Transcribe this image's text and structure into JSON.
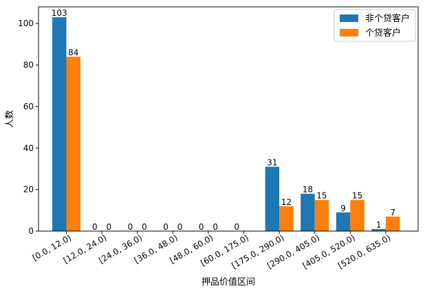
{
  "chart_data": {
    "type": "bar",
    "xlabel": "押品价值区间",
    "ylabel": "人数",
    "ylim": [
      0,
      108
    ],
    "yticks": [
      0,
      20,
      40,
      60,
      80,
      100
    ],
    "grid": false,
    "legend_position": "top-right",
    "categories": [
      "[0.0, 12.0)",
      "[12.0, 24.0)",
      "[24.0, 36.0)",
      "[36.0, 48.0)",
      "[48.0, 60.0)",
      "[60.0, 175.0)",
      "[175.0, 290.0)",
      "[290.0, 405.0)",
      "[405.0, 520.0)",
      "[520.0, 635.0)"
    ],
    "series": [
      {
        "name": "非个贷客户",
        "color": "#1f77b4",
        "values": [
          103,
          0,
          0,
          0,
          0,
          0,
          31,
          18,
          9,
          1
        ],
        "labels": [
          "103",
          "0",
          "0",
          "0",
          "0",
          "0",
          "31",
          "18",
          "9",
          "1"
        ]
      },
      {
        "name": "个贷客户",
        "color": "#ff7f0e",
        "values": [
          84,
          0,
          0,
          0,
          0,
          0,
          12,
          15,
          15,
          7
        ],
        "labels": [
          "84",
          "0",
          "0",
          "0",
          "0",
          "0",
          "12",
          "15",
          "15",
          "7"
        ]
      }
    ],
    "visible_labels": [
      [
        true,
        true,
        true,
        true,
        true,
        true,
        true,
        true,
        true,
        true
      ],
      [
        true,
        true,
        true,
        true,
        true,
        false,
        true,
        true,
        true,
        true
      ]
    ]
  }
}
